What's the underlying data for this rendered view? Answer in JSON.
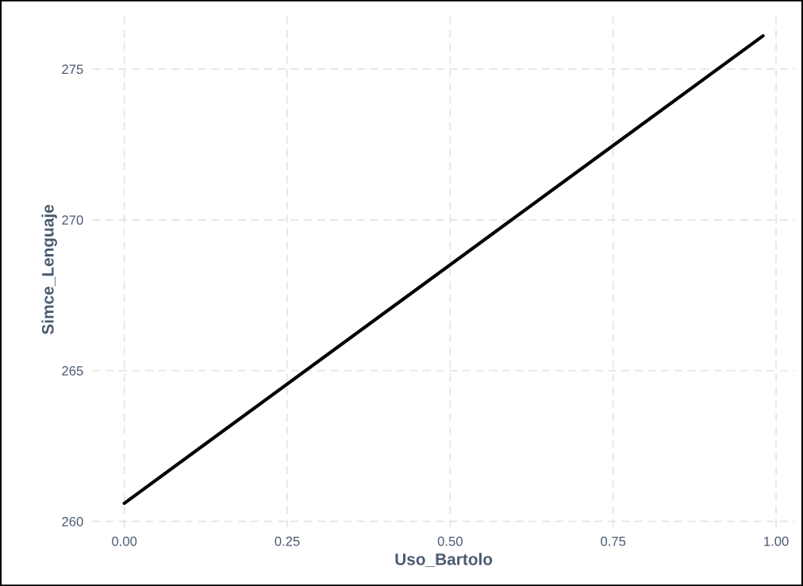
{
  "chart_data": {
    "type": "line",
    "xlabel": "Uso_Bartolo",
    "ylabel": "Simce_Lenguaje",
    "x": [
      0.0,
      0.98
    ],
    "series": [
      {
        "color": "#000000",
        "values": [
          260.6,
          276.1
        ]
      }
    ],
    "xlim": [
      -0.049,
      1.029
    ],
    "ylim": [
      259.8,
      276.9
    ],
    "xticks": [
      {
        "value": 0,
        "label": "0.00"
      },
      {
        "value": 0.25,
        "label": "0.25"
      },
      {
        "value": 0.5,
        "label": "0.50"
      },
      {
        "value": 0.75,
        "label": "0.75"
      },
      {
        "value": 1,
        "label": "1.00"
      }
    ],
    "yticks": [
      260,
      265,
      270,
      275
    ],
    "grid": true,
    "line_style": "solid",
    "marker": "none",
    "legend": false
  }
}
